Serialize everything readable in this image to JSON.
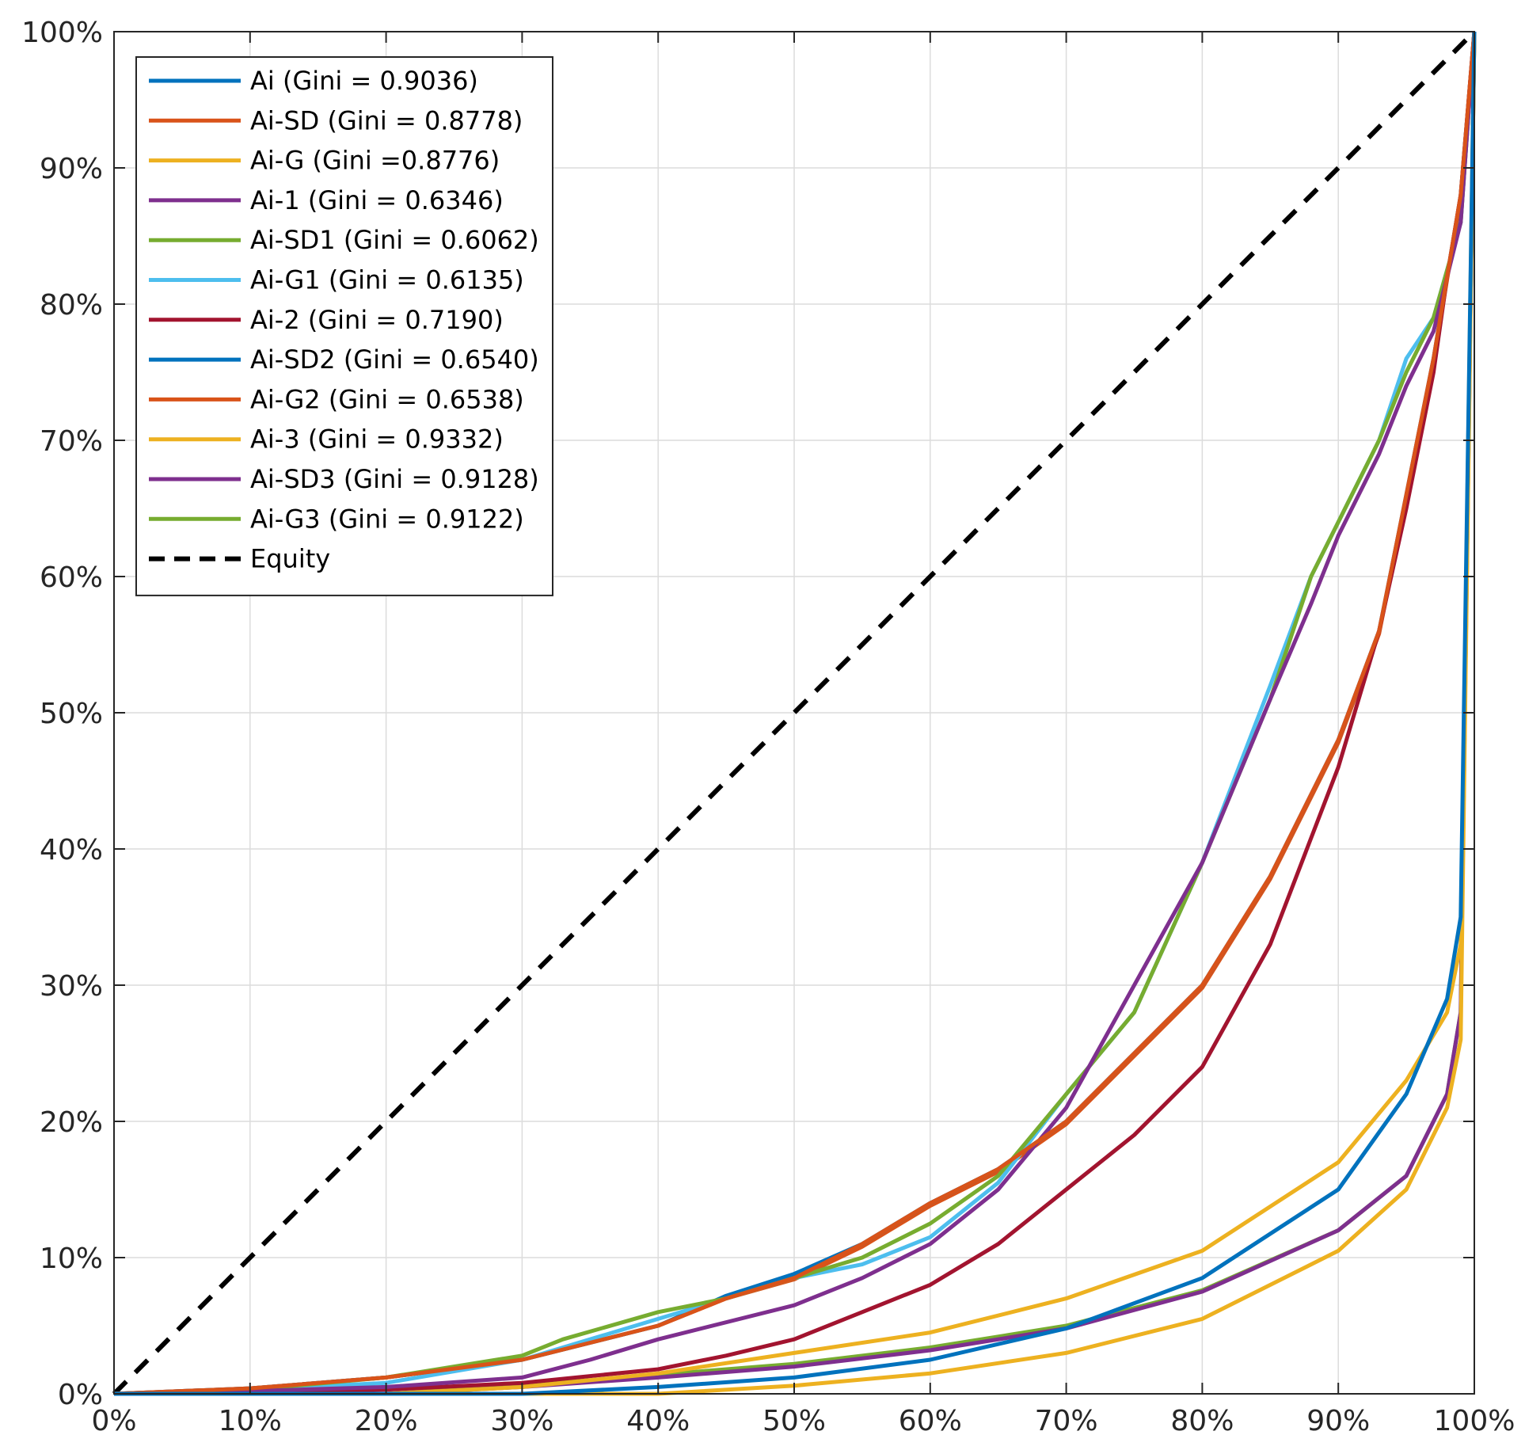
{
  "chart_data": {
    "type": "line",
    "title": "",
    "xlabel": "",
    "ylabel": "",
    "xlim": [
      0,
      100
    ],
    "ylim": [
      0,
      100
    ],
    "grid": true,
    "legend_location": "top-left",
    "xticks": [
      "0%",
      "10%",
      "20%",
      "30%",
      "40%",
      "50%",
      "60%",
      "70%",
      "80%",
      "90%",
      "100%"
    ],
    "yticks": [
      "0%",
      "10%",
      "20%",
      "30%",
      "40%",
      "50%",
      "60%",
      "70%",
      "80%",
      "90%",
      "100%"
    ],
    "series": [
      {
        "name": "Ai (Gini = 0.9036)",
        "color": "#0072BD",
        "dash": "solid",
        "x": [
          0,
          30,
          40,
          50,
          60,
          70,
          80,
          90,
          95,
          98,
          99,
          100
        ],
        "y": [
          0,
          0,
          0.5,
          1.2,
          2.5,
          4.8,
          8.5,
          15,
          22,
          29,
          35,
          100
        ]
      },
      {
        "name": "Ai-SD (Gini = 0.8778)",
        "color": "#D95319",
        "dash": "solid",
        "x": [
          0,
          10,
          20,
          30,
          40,
          45,
          50,
          55,
          60,
          65,
          70,
          75,
          80,
          85,
          90,
          93,
          95,
          97,
          98,
          99,
          100
        ],
        "y": [
          0,
          0.4,
          1.2,
          2.5,
          5,
          7,
          8.5,
          11,
          14,
          16.5,
          20,
          25,
          30,
          38,
          48,
          56,
          66,
          76,
          82,
          88,
          100
        ]
      },
      {
        "name": "Ai-G (Gini =0.8776)",
        "color": "#EDB120",
        "dash": "solid",
        "x": [
          0,
          20,
          30,
          40,
          50,
          60,
          70,
          80,
          90,
          95,
          98,
          99,
          100
        ],
        "y": [
          0,
          0,
          0.5,
          1.5,
          3,
          4.5,
          7,
          10.5,
          17,
          23,
          28,
          33,
          100
        ]
      },
      {
        "name": "Ai-1 (Gini = 0.6346)",
        "color": "#7E2F8E",
        "dash": "solid",
        "x": [
          0,
          10,
          20,
          30,
          35,
          40,
          50,
          55,
          60,
          65,
          70,
          75,
          80,
          85,
          88,
          90,
          93,
          95,
          97,
          99,
          100
        ],
        "y": [
          0,
          0.2,
          0.5,
          1.2,
          2.5,
          4,
          6.5,
          8.5,
          11,
          15,
          21,
          30,
          39,
          51,
          58,
          63,
          69,
          74,
          78,
          86,
          100
        ]
      },
      {
        "name": "Ai-SD1 (Gini = 0.6062)",
        "color": "#77AC30",
        "dash": "solid",
        "x": [
          0,
          10,
          20,
          30,
          33,
          40,
          45,
          50,
          55,
          60,
          65,
          70,
          75,
          80,
          85,
          88,
          90,
          93,
          95,
          97,
          99,
          100
        ],
        "y": [
          0,
          0.3,
          1.2,
          2.8,
          4,
          6,
          7,
          8.5,
          10,
          12.5,
          16,
          22,
          28,
          39,
          51,
          60,
          64,
          70,
          75,
          79,
          86,
          100
        ]
      },
      {
        "name": "Ai-G1 (Gini = 0.6135)",
        "color": "#4DBEEE",
        "dash": "solid",
        "x": [
          0,
          10,
          20,
          30,
          35,
          40,
          45,
          50,
          55,
          60,
          65,
          70,
          75,
          80,
          85,
          88,
          90,
          93,
          95,
          97,
          99,
          100
        ],
        "y": [
          0,
          0.3,
          0.8,
          2.5,
          4,
          5.5,
          7,
          8.5,
          9.5,
          11.5,
          15.5,
          22,
          28,
          39,
          52,
          60,
          64,
          70,
          76,
          79,
          86,
          100
        ]
      },
      {
        "name": "Ai-2 (Gini = 0.7190)",
        "color": "#A2142F",
        "dash": "solid",
        "x": [
          0,
          20,
          30,
          35,
          40,
          45,
          50,
          55,
          60,
          65,
          70,
          75,
          80,
          85,
          90,
          93,
          95,
          97,
          98,
          99,
          100
        ],
        "y": [
          0,
          0.3,
          0.8,
          1.3,
          1.8,
          2.8,
          4,
          6,
          8,
          11,
          15,
          19,
          24,
          33,
          46,
          56,
          65,
          75,
          82,
          88,
          100
        ]
      },
      {
        "name": "Ai-SD2 (Gini = 0.6540)",
        "color": "#0072BD",
        "dash": "solid",
        "x": [
          0,
          10,
          20,
          30,
          40,
          45,
          50,
          55,
          60,
          65,
          70,
          75,
          80,
          85,
          90,
          93,
          95,
          97,
          98,
          99,
          100
        ],
        "y": [
          0,
          0.4,
          1.2,
          2.5,
          5,
          7.2,
          8.8,
          11,
          14,
          16.5,
          20,
          25,
          30,
          38,
          48,
          56,
          66,
          76,
          82,
          88,
          100
        ]
      },
      {
        "name": "Ai-G2 (Gini = 0.6538)",
        "color": "#D95319",
        "dash": "solid",
        "x": [
          0,
          10,
          20,
          30,
          40,
          45,
          50,
          55,
          60,
          65,
          70,
          75,
          80,
          85,
          90,
          93,
          95,
          97,
          98,
          99,
          100
        ],
        "y": [
          0,
          0.4,
          1.2,
          2.5,
          5,
          7,
          8.4,
          10.8,
          13.8,
          16.3,
          19.8,
          24.8,
          29.8,
          37.8,
          47.8,
          55.8,
          65.8,
          75.8,
          81.8,
          87.8,
          100
        ]
      },
      {
        "name": "Ai-3 (Gini = 0.9332)",
        "color": "#EDB120",
        "dash": "solid",
        "x": [
          0,
          40,
          50,
          60,
          70,
          80,
          90,
          95,
          98,
          99,
          100
        ],
        "y": [
          0,
          0,
          0.6,
          1.5,
          3,
          5.5,
          10.5,
          15,
          21,
          26,
          100
        ]
      },
      {
        "name": "Ai-SD3 (Gini = 0.9128)",
        "color": "#7E2F8E",
        "dash": "solid",
        "x": [
          0,
          20,
          30,
          40,
          50,
          60,
          70,
          80,
          90,
          95,
          98,
          99,
          100
        ],
        "y": [
          0,
          0,
          0.5,
          1.2,
          2,
          3.2,
          4.8,
          7.5,
          12,
          16,
          22,
          28,
          100
        ]
      },
      {
        "name": "Ai-G3 (Gini = 0.9122)",
        "color": "#77AC30",
        "dash": "solid",
        "x": [
          0,
          20,
          30,
          40,
          50,
          60,
          70,
          80,
          90,
          95,
          98,
          99,
          100
        ],
        "y": [
          0,
          0,
          0.6,
          1.4,
          2.2,
          3.4,
          5,
          7.6,
          12,
          16,
          22,
          28,
          100
        ]
      },
      {
        "name": "Equity",
        "color": "#000000",
        "dash": "dashed",
        "x": [
          0,
          100
        ],
        "y": [
          0,
          100
        ]
      }
    ]
  }
}
